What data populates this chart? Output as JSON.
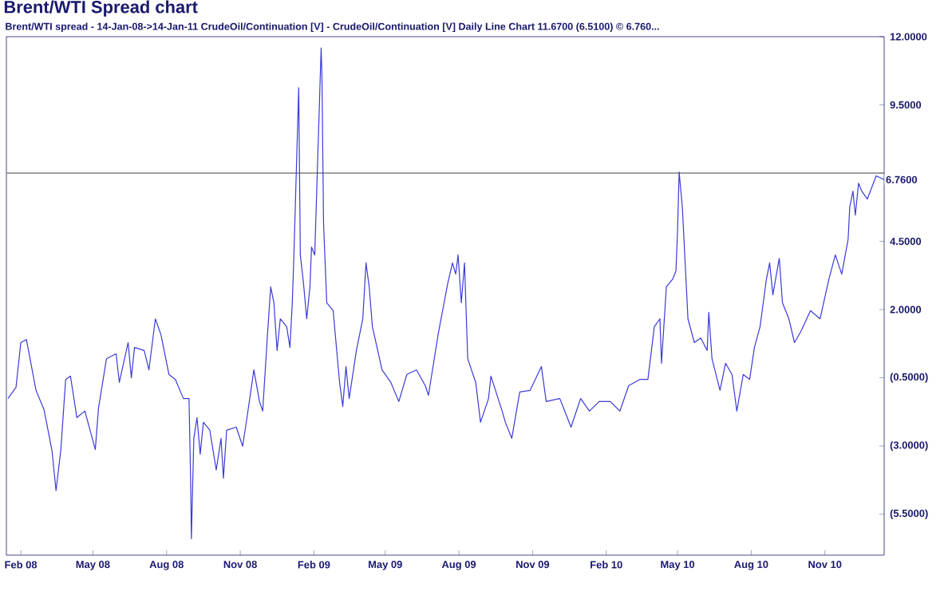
{
  "chart_data": {
    "type": "line",
    "title": "Brent/WTI Spread chart",
    "subtitle": "Brent/WTI spread -  14-Jan-08->14-Jan-11 CrudeOil/Continuation [V] - CrudeOil/Continuation [V] Daily Line Chart 11.6700 (6.5100) ©   6.760...",
    "xlim": [
      "2008-01-14",
      "2011-01-14"
    ],
    "xticks": [
      {
        "value": "2008-02-01",
        "label": "Feb 08"
      },
      {
        "value": "2008-05-01",
        "label": "May 08"
      },
      {
        "value": "2008-08-01",
        "label": "Aug 08"
      },
      {
        "value": "2008-11-01",
        "label": "Nov 08"
      },
      {
        "value": "2009-02-01",
        "label": "Feb 09"
      },
      {
        "value": "2009-05-01",
        "label": "May 09"
      },
      {
        "value": "2009-08-01",
        "label": "Aug 09"
      },
      {
        "value": "2009-11-01",
        "label": "Nov 09"
      },
      {
        "value": "2010-02-01",
        "label": "Feb 10"
      },
      {
        "value": "2010-05-01",
        "label": "May 10"
      },
      {
        "value": "2010-08-01",
        "label": "Aug 10"
      },
      {
        "value": "2010-11-01",
        "label": "Nov 10"
      }
    ],
    "ylim": [
      -7,
      12
    ],
    "yticks": [
      {
        "value": 12,
        "label": "12.0000"
      },
      {
        "value": 9.5,
        "label": "9.5000"
      },
      {
        "value": 7,
        "label": null
      },
      {
        "value": 4.5,
        "label": "4.5000"
      },
      {
        "value": 2,
        "label": "2.0000"
      },
      {
        "value": -0.5,
        "label": "(0.5000)"
      },
      {
        "value": -3,
        "label": "(3.0000)"
      },
      {
        "value": -5.5,
        "label": "(5.5000)"
      }
    ],
    "grid": false,
    "marker": "none",
    "line_style": "solid",
    "ref_lines": [
      {
        "axis": "y",
        "value": 7,
        "color": "#808080"
      }
    ],
    "annotations": [
      {
        "text": "6.7600",
        "x": "2011-01-14",
        "y": 6.76
      }
    ],
    "series": [
      {
        "color": "#3a3ad8",
        "x": [
          "2008-01-16",
          "2008-01-26",
          "2008-02-01",
          "2008-02-08",
          "2008-02-20",
          "2008-03-01",
          "2008-03-11",
          "2008-03-16",
          "2008-03-22",
          "2008-03-28",
          "2008-04-03",
          "2008-04-11",
          "2008-04-21",
          "2008-05-04",
          "2008-05-08",
          "2008-05-18",
          "2008-05-30",
          "2008-06-03",
          "2008-06-14",
          "2008-06-18",
          "2008-06-22",
          "2008-07-04",
          "2008-07-10",
          "2008-07-18",
          "2008-07-25",
          "2008-08-04",
          "2008-08-12",
          "2008-08-22",
          "2008-08-29",
          "2008-08-31",
          "2008-09-01",
          "2008-09-04",
          "2008-09-08",
          "2008-09-12",
          "2008-09-16",
          "2008-09-24",
          "2008-10-02",
          "2008-10-08",
          "2008-10-11",
          "2008-10-15",
          "2008-10-27",
          "2008-11-04",
          "2008-11-10",
          "2008-11-18",
          "2008-11-25",
          "2008-11-29",
          "2008-12-05",
          "2008-12-09",
          "2008-12-13",
          "2008-12-17",
          "2008-12-21",
          "2008-12-29",
          "2009-01-02",
          "2009-01-05",
          "2009-01-07",
          "2009-01-11",
          "2009-01-13",
          "2009-01-15",
          "2009-01-19",
          "2009-01-23",
          "2009-01-27",
          "2009-01-29",
          "2009-02-02",
          "2009-02-06",
          "2009-02-10",
          "2009-02-11",
          "2009-02-13",
          "2009-02-17",
          "2009-02-25",
          "2009-03-05",
          "2009-03-09",
          "2009-03-13",
          "2009-03-17",
          "2009-03-26",
          "2009-04-03",
          "2009-04-07",
          "2009-04-11",
          "2009-04-15",
          "2009-04-27",
          "2009-05-08",
          "2009-05-18",
          "2009-05-28",
          "2009-06-09",
          "2009-06-20",
          "2009-06-24",
          "2009-07-06",
          "2009-07-18",
          "2009-07-24",
          "2009-07-28",
          "2009-07-31",
          "2009-08-04",
          "2009-08-08",
          "2009-08-12",
          "2009-08-22",
          "2009-08-28",
          "2009-09-07",
          "2009-09-10",
          "2009-09-24",
          "2009-09-28",
          "2009-10-06",
          "2009-10-16",
          "2009-10-29",
          "2009-11-12",
          "2009-11-18",
          "2009-12-05",
          "2009-12-19",
          "2009-12-31",
          "2010-01-11",
          "2010-01-23",
          "2010-02-06",
          "2010-02-18",
          "2010-03-01",
          "2010-03-15",
          "2010-03-25",
          "2010-04-02",
          "2010-04-09",
          "2010-04-11",
          "2010-04-17",
          "2010-04-25",
          "2010-04-29",
          "2010-05-01",
          "2010-05-03",
          "2010-05-07",
          "2010-05-11",
          "2010-05-14",
          "2010-05-22",
          "2010-05-30",
          "2010-06-07",
          "2010-06-09",
          "2010-06-13",
          "2010-06-23",
          "2010-06-30",
          "2010-07-08",
          "2010-07-14",
          "2010-07-22",
          "2010-07-30",
          "2010-08-05",
          "2010-08-12",
          "2010-08-20",
          "2010-08-24",
          "2010-08-28",
          "2010-09-05",
          "2010-09-09",
          "2010-09-17",
          "2010-09-24",
          "2010-10-02",
          "2010-10-14",
          "2010-10-26",
          "2010-11-06",
          "2010-11-14",
          "2010-11-22",
          "2010-11-30",
          "2010-12-02",
          "2010-12-06",
          "2010-12-09",
          "2010-12-13",
          "2010-12-17",
          "2010-12-24",
          "2011-01-04",
          "2011-01-14"
        ],
        "values": [
          -1.26,
          -0.85,
          0.79,
          0.9,
          -0.96,
          -1.67,
          -3.18,
          -4.64,
          -3.13,
          -0.56,
          -0.44,
          -1.96,
          -1.72,
          -3.13,
          -1.61,
          0.2,
          0.38,
          -0.67,
          0.79,
          -0.5,
          0.61,
          0.5,
          -0.21,
          1.66,
          1.08,
          -0.38,
          -0.56,
          -1.26,
          -1.26,
          -4.18,
          -6.4,
          -2.72,
          -1.96,
          -3.3,
          -2.13,
          -2.42,
          -3.88,
          -2.72,
          -4.18,
          -2.42,
          -2.31,
          -3.01,
          -1.84,
          -0.21,
          -1.37,
          -1.72,
          1.08,
          2.83,
          2.25,
          0.5,
          1.66,
          1.37,
          0.61,
          2.25,
          4.0,
          8.09,
          10.13,
          4.0,
          2.95,
          1.66,
          2.83,
          4.29,
          4.0,
          7.8,
          11.59,
          10.54,
          5.17,
          2.25,
          1.96,
          -0.67,
          -1.55,
          -0.09,
          -1.26,
          0.5,
          1.66,
          3.71,
          2.83,
          1.37,
          -0.21,
          -0.67,
          -1.37,
          -0.38,
          -0.21,
          -0.79,
          -1.14,
          1.08,
          2.95,
          3.71,
          3.3,
          4.0,
          2.25,
          3.71,
          0.2,
          -0.67,
          -2.13,
          -1.26,
          -0.44,
          -1.72,
          -2.13,
          -2.72,
          -1.02,
          -0.96,
          -0.09,
          -1.37,
          -1.26,
          -2.31,
          -1.26,
          -1.72,
          -1.37,
          -1.37,
          -1.72,
          -0.79,
          -0.56,
          -0.56,
          1.37,
          1.66,
          0.03,
          2.83,
          3.12,
          3.42,
          4.88,
          7.04,
          5.75,
          3.42,
          1.66,
          0.79,
          0.96,
          0.5,
          1.9,
          0.2,
          -0.96,
          0.03,
          -0.38,
          -1.72,
          -0.38,
          -0.56,
          0.61,
          1.37,
          3.12,
          3.71,
          2.54,
          3.88,
          2.25,
          1.66,
          0.79,
          1.2,
          1.96,
          1.66,
          3.12,
          4.0,
          3.3,
          4.58,
          5.75,
          6.34,
          5.46,
          6.63,
          6.34,
          6.05,
          6.9,
          6.76
        ]
      }
    ]
  }
}
